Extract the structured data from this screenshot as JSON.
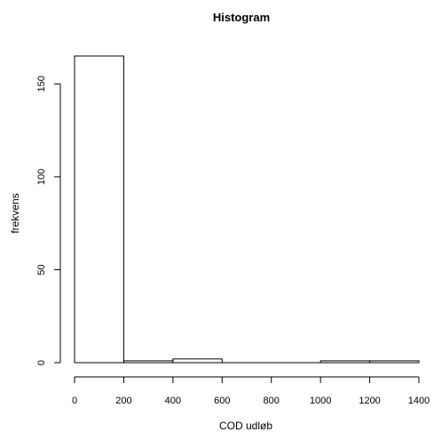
{
  "chart_data": {
    "type": "bar",
    "title": "Histogram",
    "xlabel": "COD udløb",
    "ylabel": "frekvens",
    "bins": [
      {
        "from": 0,
        "to": 200,
        "count": 165
      },
      {
        "from": 200,
        "to": 400,
        "count": 1
      },
      {
        "from": 400,
        "to": 600,
        "count": 2
      },
      {
        "from": 600,
        "to": 800,
        "count": 0
      },
      {
        "from": 800,
        "to": 1000,
        "count": 0
      },
      {
        "from": 1000,
        "to": 1200,
        "count": 1
      },
      {
        "from": 1200,
        "to": 1400,
        "count": 1
      }
    ],
    "xlim": [
      0,
      1400
    ],
    "ylim": [
      0,
      165
    ],
    "xticks": [
      0,
      200,
      400,
      600,
      800,
      1000,
      1200,
      1400
    ],
    "yticks": [
      0,
      50,
      100,
      150
    ],
    "grid": false,
    "colors": {
      "fill": "#ffffff",
      "stroke": "#000000"
    }
  }
}
